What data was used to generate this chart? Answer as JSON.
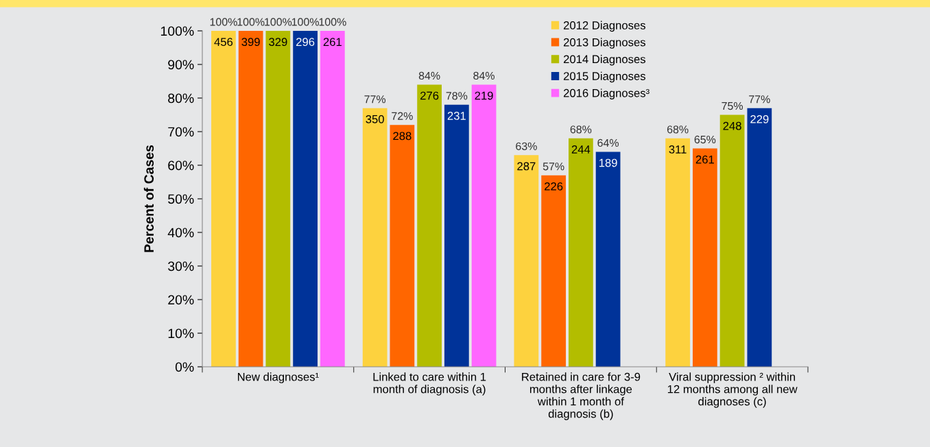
{
  "chart_data": {
    "type": "bar",
    "categories": [
      "New diagnoses¹",
      "Linked to care within 1\nmonth of diagnosis (a)",
      "Retained in care for 3-9\nmonths after linkage\nwithin 1 month of\ndiagnosis (b)",
      "Viral suppression ² within\n12 months among all new\ndiagnoses (c)"
    ],
    "ylabel": "Percent of Cases",
    "ylim": [
      0,
      100
    ],
    "yticks": [
      {
        "value": 0,
        "label": "0%"
      },
      {
        "value": 10,
        "label": "10%"
      },
      {
        "value": 20,
        "label": "20%"
      },
      {
        "value": 30,
        "label": "30%"
      },
      {
        "value": 40,
        "label": "40%"
      },
      {
        "value": 50,
        "label": "50%"
      },
      {
        "value": 60,
        "label": "60%"
      },
      {
        "value": 70,
        "label": "70%"
      },
      {
        "value": 80,
        "label": "80%"
      },
      {
        "value": 90,
        "label": "90%"
      },
      {
        "value": 100,
        "label": "100%"
      }
    ],
    "grid": false,
    "legend": "top right",
    "series": [
      {
        "name": "2012 Diagnoses",
        "color": "#fdd23e",
        "values": [
          100,
          77,
          63,
          68
        ],
        "value_labels": [
          "100%",
          "77%",
          "63%",
          "68%"
        ]
      },
      {
        "name": "2013 Diagnoses",
        "color": "#ff6600",
        "values": [
          100,
          72,
          57,
          65
        ],
        "value_labels": [
          "100%",
          "72%",
          "57%",
          "65%"
        ]
      },
      {
        "name": "2014 Diagnoses",
        "color": "#b3bd00",
        "values": [
          100,
          84,
          68,
          75
        ],
        "value_labels": [
          "100%",
          "84%",
          "68%",
          "75%"
        ]
      },
      {
        "name": "2015 Diagnoses",
        "color": "#003399",
        "values": [
          100,
          78,
          64,
          77
        ],
        "value_labels": [
          "100%",
          "78%",
          "64%",
          "77%"
        ]
      },
      {
        "name": "2016 Diagnoses³",
        "color": "#ff66ff",
        "values": [
          100,
          84,
          null,
          null
        ],
        "value_labels": [
          "100%",
          "84%",
          null,
          null
        ]
      }
    ],
    "annotations": [
      "456",
      "350",
      "287",
      "311",
      "399",
      "288",
      "226",
      "261",
      "329",
      "276",
      "244",
      "248",
      "296",
      "231",
      "189",
      "229",
      "261",
      "219"
    ]
  }
}
